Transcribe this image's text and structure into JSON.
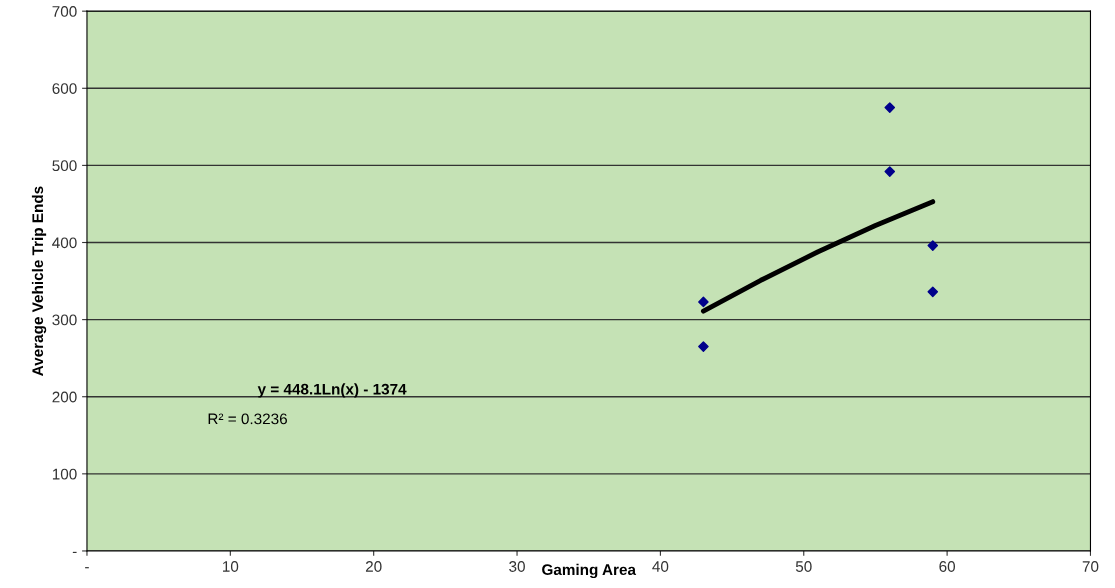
{
  "chart_data": {
    "type": "scatter",
    "xlabel": "Gaming Area",
    "ylabel": "Average Vehicle Trip Ends",
    "series": [
      {
        "color": "#00008b",
        "x": [
          43,
          43,
          56,
          56,
          59,
          59
        ],
        "values": [
          323,
          265,
          575,
          492,
          396,
          336
        ],
        "marker": "diamond"
      },
      {
        "type": "line",
        "color": "#000000",
        "x": [
          43,
          47,
          51,
          55,
          59
        ],
        "values": [
          311,
          351,
          388,
          422,
          453
        ],
        "marker": "none"
      }
    ],
    "annotations": [
      "y = 448.1Ln(x) - 1374",
      "R² = 0.3236"
    ],
    "xlim": [
      0,
      70
    ],
    "xticks": [
      {
        "value": 0,
        "label": "-"
      },
      10,
      20,
      30,
      40,
      50,
      60,
      70
    ],
    "ylim": [
      0,
      700
    ],
    "yticks": [
      {
        "value": 0,
        "label": "-"
      },
      100,
      200,
      300,
      400,
      500,
      600,
      700
    ],
    "grid": "y",
    "legend": false
  }
}
